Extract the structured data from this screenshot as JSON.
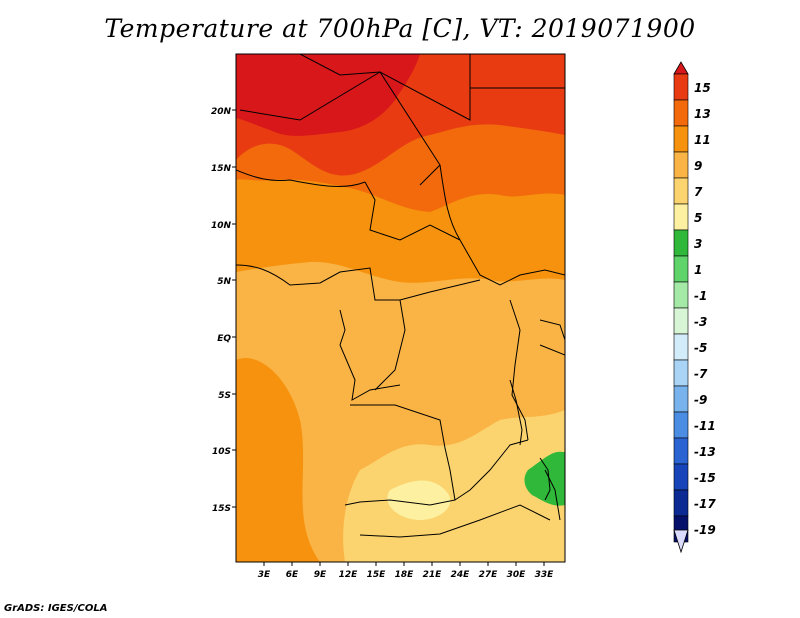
{
  "title": "Temperature at 700hPa [C], VT: 2019071900",
  "credit": "GrADS: IGES/COLA",
  "map": {
    "variable": "Temperature at 700hPa",
    "units": "C",
    "valid_time": "2019071900",
    "lat_labels": [
      "20N",
      "15N",
      "10N",
      "5N",
      "EQ",
      "5S",
      "10S",
      "15S"
    ],
    "lon_labels": [
      "3E",
      "6E",
      "9E",
      "12E",
      "15E",
      "18E",
      "21E",
      "24E",
      "27E",
      "30E",
      "33E"
    ]
  },
  "legend": {
    "labels": [
      "15",
      "13",
      "11",
      "9",
      "7",
      "5",
      "3",
      "1",
      "-1",
      "-3",
      "-5",
      "-7",
      "-9",
      "-11",
      "-13",
      "-15",
      "-17",
      "-19"
    ],
    "colors": [
      "#d8171a",
      "#e83b12",
      "#f26a0c",
      "#f7920e",
      "#f9b445",
      "#fbd46f",
      "#fdf0a1",
      "#2fb83a",
      "#5fd46a",
      "#a4e9a6",
      "#d8f5d6",
      "#d3ecfa",
      "#a9d4f5",
      "#78b3ee",
      "#4a8de3",
      "#2a63d2",
      "#1744b8",
      "#0c2a94",
      "#05106a",
      "#dcdcff"
    ]
  }
}
